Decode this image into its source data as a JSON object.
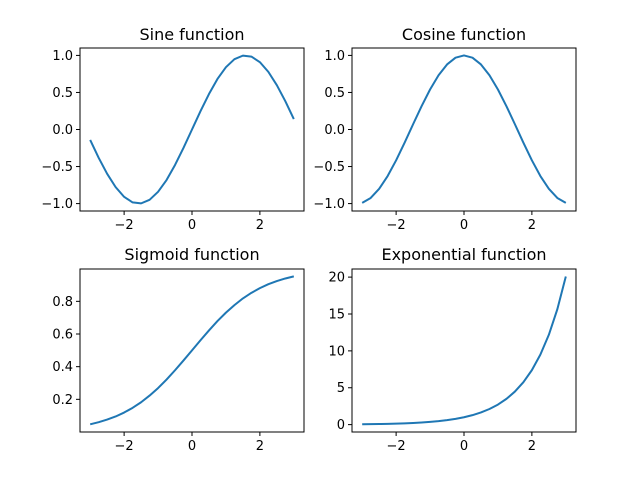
{
  "figure": {
    "background": "#ffffff",
    "line_color": "#1f77b4"
  },
  "chart_data": [
    {
      "type": "line",
      "title": "Sine function",
      "xlabel": "",
      "ylabel": "",
      "xlim": [
        -3.3,
        3.3
      ],
      "ylim": [
        -1.1,
        1.1
      ],
      "xticks": [
        -2,
        0,
        2
      ],
      "xtick_labels": [
        "−2",
        "0",
        "2"
      ],
      "yticks": [
        -1.0,
        -0.5,
        0.0,
        0.5,
        1.0
      ],
      "ytick_labels": [
        "−1.0",
        "−0.5",
        "0.0",
        "0.5",
        "1.0"
      ],
      "grid": false,
      "series": [
        {
          "color": "#1f77b4",
          "x": [
            -3.0,
            -2.75,
            -2.5,
            -2.25,
            -2.0,
            -1.75,
            -1.5,
            -1.25,
            -1.0,
            -0.75,
            -0.5,
            -0.25,
            0.0,
            0.25,
            0.5,
            0.75,
            1.0,
            1.25,
            1.5,
            1.75,
            2.0,
            2.25,
            2.5,
            2.75,
            3.0
          ],
          "y": [
            -0.141,
            -0.382,
            -0.598,
            -0.778,
            -0.909,
            -0.984,
            -0.997,
            -0.949,
            -0.841,
            -0.682,
            -0.479,
            -0.247,
            0.0,
            0.247,
            0.479,
            0.682,
            0.841,
            0.949,
            0.997,
            0.984,
            0.909,
            0.778,
            0.598,
            0.382,
            0.141
          ]
        }
      ]
    },
    {
      "type": "line",
      "title": "Cosine function",
      "xlabel": "",
      "ylabel": "",
      "xlim": [
        -3.3,
        3.3
      ],
      "ylim": [
        -1.1,
        1.1
      ],
      "xticks": [
        -2,
        0,
        2
      ],
      "xtick_labels": [
        "−2",
        "0",
        "2"
      ],
      "yticks": [
        -1.0,
        -0.5,
        0.0,
        0.5,
        1.0
      ],
      "ytick_labels": [
        "−1.0",
        "−0.5",
        "0.0",
        "0.5",
        "1.0"
      ],
      "grid": false,
      "series": [
        {
          "color": "#1f77b4",
          "x": [
            -3.0,
            -2.75,
            -2.5,
            -2.25,
            -2.0,
            -1.75,
            -1.5,
            -1.25,
            -1.0,
            -0.75,
            -0.5,
            -0.25,
            0.0,
            0.25,
            0.5,
            0.75,
            1.0,
            1.25,
            1.5,
            1.75,
            2.0,
            2.25,
            2.5,
            2.75,
            3.0
          ],
          "y": [
            -0.99,
            -0.924,
            -0.801,
            -0.628,
            -0.416,
            -0.178,
            0.071,
            0.315,
            0.54,
            0.732,
            0.878,
            0.969,
            1.0,
            0.969,
            0.878,
            0.732,
            0.54,
            0.315,
            0.071,
            -0.178,
            -0.416,
            -0.628,
            -0.801,
            -0.924,
            -0.99
          ]
        }
      ]
    },
    {
      "type": "line",
      "title": "Sigmoid function",
      "xlabel": "",
      "ylabel": "",
      "xlim": [
        -3.3,
        3.3
      ],
      "ylim": [
        0.0,
        0.998
      ],
      "xticks": [
        -2,
        0,
        2
      ],
      "xtick_labels": [
        "−2",
        "0",
        "2"
      ],
      "yticks": [
        0.2,
        0.4,
        0.6,
        0.8
      ],
      "ytick_labels": [
        "0.2",
        "0.4",
        "0.6",
        "0.8"
      ],
      "grid": false,
      "series": [
        {
          "color": "#1f77b4",
          "x": [
            -3.0,
            -2.75,
            -2.5,
            -2.25,
            -2.0,
            -1.75,
            -1.5,
            -1.25,
            -1.0,
            -0.75,
            -0.5,
            -0.25,
            0.0,
            0.25,
            0.5,
            0.75,
            1.0,
            1.25,
            1.5,
            1.75,
            2.0,
            2.25,
            2.5,
            2.75,
            3.0
          ],
          "y": [
            0.047,
            0.06,
            0.076,
            0.095,
            0.119,
            0.148,
            0.182,
            0.223,
            0.269,
            0.321,
            0.378,
            0.438,
            0.5,
            0.562,
            0.622,
            0.679,
            0.731,
            0.777,
            0.818,
            0.852,
            0.881,
            0.905,
            0.924,
            0.94,
            0.953
          ]
        }
      ]
    },
    {
      "type": "line",
      "title": "Exponential function",
      "xlabel": "",
      "ylabel": "",
      "xlim": [
        -3.3,
        3.3
      ],
      "ylim": [
        -1.0,
        21.1
      ],
      "xticks": [
        -2,
        0,
        2
      ],
      "xtick_labels": [
        "−2",
        "0",
        "2"
      ],
      "yticks": [
        0,
        5,
        10,
        15,
        20
      ],
      "ytick_labels": [
        "0",
        "5",
        "10",
        "15",
        "20"
      ],
      "grid": false,
      "series": [
        {
          "color": "#1f77b4",
          "x": [
            -3.0,
            -2.75,
            -2.5,
            -2.25,
            -2.0,
            -1.75,
            -1.5,
            -1.25,
            -1.0,
            -0.75,
            -0.5,
            -0.25,
            0.0,
            0.25,
            0.5,
            0.75,
            1.0,
            1.25,
            1.5,
            1.75,
            2.0,
            2.25,
            2.5,
            2.75,
            3.0
          ],
          "y": [
            0.05,
            0.064,
            0.082,
            0.105,
            0.135,
            0.174,
            0.223,
            0.287,
            0.368,
            0.472,
            0.607,
            0.779,
            1.0,
            1.284,
            1.649,
            2.117,
            2.718,
            3.49,
            4.482,
            5.755,
            7.389,
            9.488,
            12.182,
            15.643,
            20.086
          ]
        }
      ]
    }
  ]
}
